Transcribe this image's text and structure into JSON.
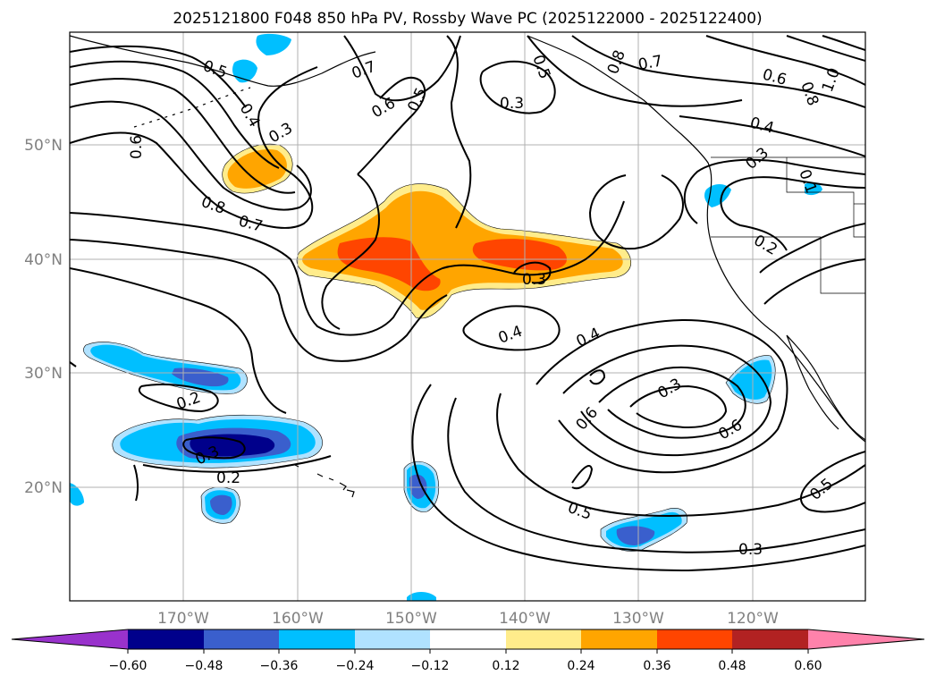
{
  "title": "2025121800 F048 850 hPa PV, Rossby Wave PC (2025122000 - 2025122400)",
  "map": {
    "lat_labels": [
      "50°N",
      "40°N",
      "30°N",
      "20°N"
    ],
    "lon_labels": [
      "170°W",
      "160°W",
      "150°W",
      "140°W",
      "130°W",
      "120°W"
    ],
    "grid": true
  },
  "colors": {
    "fill_min": "#9932cc",
    "fill_-0.60": "#00008b",
    "fill_-0.48": "#3a5fcd",
    "fill_-0.36": "#00bfff",
    "fill_-0.24": "#b0e2ff",
    "fill_-0.12": "#ffffff",
    "fill_0.12": "#ffec8b",
    "fill_0.24": "#ffa500",
    "fill_0.36": "#ff4500",
    "fill_0.48": "#b22222",
    "fill_max": "#ff82ab"
  },
  "colorbar": {
    "ticks": [
      "−0.60",
      "−0.48",
      "−0.36",
      "−0.24",
      "−0.12",
      "0.12",
      "0.24",
      "0.36",
      "0.48",
      "0.60"
    ]
  },
  "contour_labels": [
    {
      "text": "0.5"
    },
    {
      "text": "0.7"
    },
    {
      "text": "0.4"
    },
    {
      "text": "0.3"
    },
    {
      "text": "0.6"
    },
    {
      "text": "0.8"
    },
    {
      "text": "0.7"
    },
    {
      "text": "0.6"
    },
    {
      "text": "0.5"
    },
    {
      "text": "0.3"
    },
    {
      "text": "0.5"
    },
    {
      "text": "0.8"
    },
    {
      "text": "0.7"
    },
    {
      "text": "0.6"
    },
    {
      "text": "0.8"
    },
    {
      "text": "1.0"
    },
    {
      "text": "0.4"
    },
    {
      "text": "0.3"
    },
    {
      "text": "0.1"
    },
    {
      "text": "0.2"
    },
    {
      "text": "0.3"
    },
    {
      "text": "0.4"
    },
    {
      "text": "0.4"
    },
    {
      "text": "0.3"
    },
    {
      "text": "0.6"
    },
    {
      "text": "0.6"
    },
    {
      "text": "0.2"
    },
    {
      "text": "0.3"
    },
    {
      "text": "0.2"
    },
    {
      "text": "0.5"
    },
    {
      "text": "0.3"
    },
    {
      "text": "0.5"
    }
  ]
}
